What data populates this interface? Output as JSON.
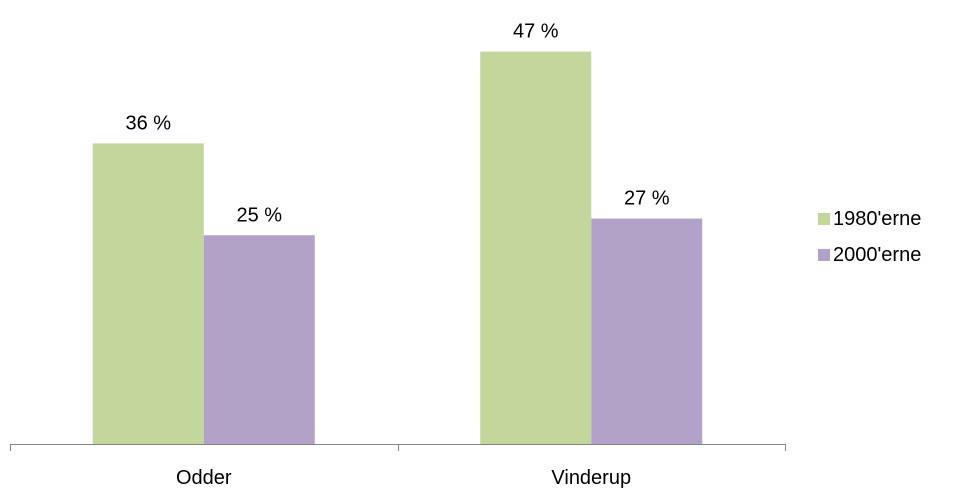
{
  "chart_data": {
    "type": "bar",
    "categories": [
      "Odder",
      "Vinderup"
    ],
    "series": [
      {
        "name": "1980'erne",
        "values": [
          36,
          47
        ],
        "labels": [
          "36 %",
          "47 %"
        ],
        "color": "#c3d69b"
      },
      {
        "name": "2000'erne",
        "values": [
          25,
          27
        ],
        "labels": [
          "25 %",
          "27 %"
        ],
        "color": "#b3a2c7"
      }
    ],
    "title": "",
    "xlabel": "",
    "ylabel": "",
    "ylim": [
      0,
      50
    ],
    "grid": false,
    "legend_position": "right"
  }
}
